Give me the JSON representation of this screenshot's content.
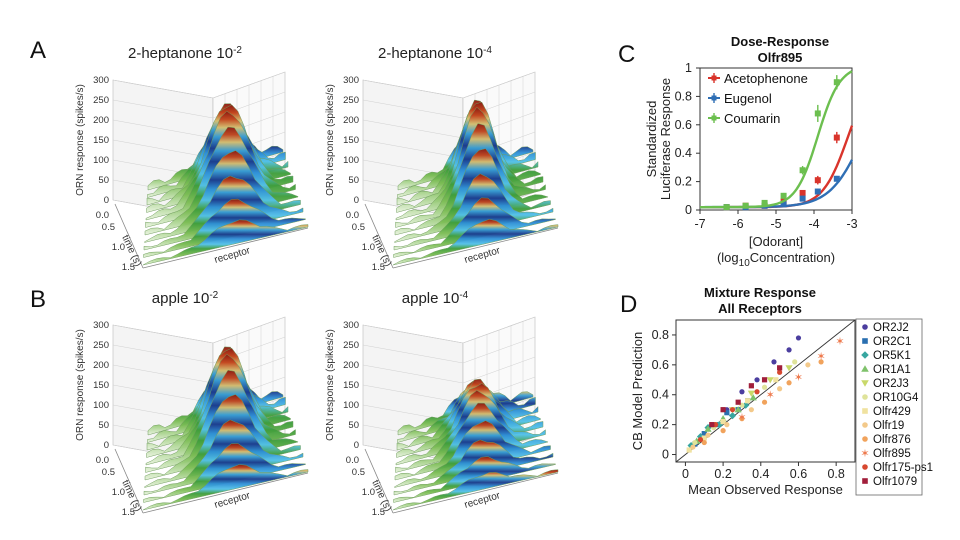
{
  "figure": {
    "panels": [
      {
        "letter": "A",
        "title": "2-heptanone 10",
        "exp": "-2",
        "peak": 0.88,
        "sharp": 0.35
      },
      {
        "letter": "",
        "title": "2-heptanone 10",
        "exp": "-4",
        "peak": 0.92,
        "sharp": 0.6
      },
      {
        "letter": "B",
        "title": "apple 10",
        "exp": "-2",
        "peak": 0.9,
        "sharp": 0.45
      },
      {
        "letter": "",
        "title": "apple 10",
        "exp": "-4",
        "peak": 0.55,
        "sharp": 0.5
      }
    ],
    "axes3d": {
      "zlabel": "ORN response (spikes/s)",
      "zticks": [
        "0.0",
        "0",
        "50",
        "100",
        "150",
        "200",
        "250",
        "300"
      ],
      "timelabel": "time (s)",
      "timeticks": [
        "0.5",
        "1.0",
        "1.5"
      ],
      "receptorlabel": "receptor"
    },
    "colors": {
      "low": "#5aa83e",
      "mid": "#3cb6e6",
      "deep": "#1b3d8f",
      "high": "#b52a1c",
      "surface_light": "#e6f2dc"
    }
  },
  "chart_data": [
    {
      "id": "C",
      "letter": "C",
      "type": "line",
      "title": "Dose-Response",
      "subtitle": "Olfr895",
      "xlabel": "[Odorant]",
      "xlabel2_pre": "(log",
      "xlabel2_sub": "10",
      "xlabel2_post": "Concentration)",
      "ylabel": [
        "Standardized",
        "Luciferase Response"
      ],
      "xlim": [
        -7,
        -3
      ],
      "ylim": [
        0,
        1
      ],
      "xticks": [
        -7,
        -6,
        -5,
        -4,
        -3
      ],
      "yticks": [
        0,
        0.2,
        0.4,
        0.6,
        0.8,
        1
      ],
      "xtick_labels": [
        "-7",
        "-6",
        "-5",
        "-4",
        "-3"
      ],
      "ytick_labels": [
        "0",
        "0.2",
        "0.4",
        "0.6",
        "0.8",
        "1"
      ],
      "series": [
        {
          "name": "Acetophenone",
          "color": "#d9342b",
          "x": [
            -6.3,
            -5.8,
            -5.3,
            -4.8,
            -4.3,
            -3.9,
            -3.4
          ],
          "y": [
            0.02,
            0.03,
            0.03,
            0.06,
            0.12,
            0.21,
            0.51
          ],
          "err": [
            0.01,
            0.01,
            0.01,
            0.02,
            0.02,
            0.03,
            0.04
          ],
          "ec50": -3.1,
          "hill": 1.3
        },
        {
          "name": "Eugenol",
          "color": "#2f6fb5",
          "x": [
            -6.3,
            -5.8,
            -5.3,
            -4.8,
            -4.3,
            -3.9,
            -3.4
          ],
          "y": [
            0.02,
            0.02,
            0.03,
            0.04,
            0.08,
            0.13,
            0.22
          ],
          "err": [
            0.01,
            0.01,
            0.01,
            0.01,
            0.02,
            0.02,
            0.02
          ],
          "ec50": -2.7,
          "hill": 1.0
        },
        {
          "name": "Coumarin",
          "color": "#6cbf4f",
          "x": [
            -6.3,
            -5.8,
            -5.3,
            -4.8,
            -4.3,
            -3.9,
            -3.4
          ],
          "y": [
            0.02,
            0.03,
            0.05,
            0.1,
            0.28,
            0.68,
            0.9
          ],
          "err": [
            0.01,
            0.01,
            0.01,
            0.02,
            0.03,
            0.06,
            0.05
          ],
          "ec50": -3.9,
          "hill": 1.5
        }
      ]
    },
    {
      "id": "D",
      "letter": "D",
      "type": "scatter",
      "title": "Mixture Response",
      "subtitle": "All Receptors",
      "xlabel": "Mean Observed Response",
      "ylabel": "CB Model Prediction",
      "xlim": [
        -0.05,
        0.9
      ],
      "ylim": [
        -0.05,
        0.9
      ],
      "xticks": [
        0,
        0.2,
        0.4,
        0.6,
        0.8
      ],
      "yticks": [
        0,
        0.2,
        0.4,
        0.6,
        0.8
      ],
      "xtick_labels": [
        "0",
        "0.2",
        "0.4",
        "0.6",
        "0.8"
      ],
      "ytick_labels": [
        "0",
        "0.2",
        "0.4",
        "0.6",
        "0.8"
      ],
      "legend_placement": "right",
      "series": [
        {
          "name": "OR2J2",
          "color": "#4b3e9f",
          "marker": "circle",
          "x": [
            0.14,
            0.22,
            0.3,
            0.38,
            0.47,
            0.55,
            0.6
          ],
          "y": [
            0.2,
            0.3,
            0.42,
            0.5,
            0.62,
            0.7,
            0.78
          ]
        },
        {
          "name": "OR2C1",
          "color": "#2a6fb0",
          "marker": "square",
          "x": [
            0.05,
            0.1,
            0.16,
            0.22,
            0.28,
            0.33
          ],
          "y": [
            0.07,
            0.14,
            0.2,
            0.28,
            0.3,
            0.36
          ]
        },
        {
          "name": "OR5K1",
          "color": "#37a6a0",
          "marker": "diamond",
          "x": [
            0.03,
            0.08,
            0.12,
            0.18,
            0.25,
            0.32
          ],
          "y": [
            0.06,
            0.12,
            0.18,
            0.2,
            0.26,
            0.33
          ]
        },
        {
          "name": "OR1A1",
          "color": "#7fc26b",
          "marker": "triangle",
          "x": [
            0.06,
            0.12,
            0.2,
            0.28,
            0.36
          ],
          "y": [
            0.09,
            0.17,
            0.24,
            0.3,
            0.38
          ]
        },
        {
          "name": "OR2J3",
          "color": "#c9d96a",
          "marker": "tri-down",
          "x": [
            0.15,
            0.25,
            0.35,
            0.45,
            0.55
          ],
          "y": [
            0.2,
            0.3,
            0.41,
            0.5,
            0.58
          ]
        },
        {
          "name": "OR10G4",
          "color": "#dfe39a",
          "marker": "circle",
          "x": [
            0.05,
            0.15,
            0.3,
            0.42,
            0.58
          ],
          "y": [
            0.08,
            0.18,
            0.33,
            0.45,
            0.62
          ]
        },
        {
          "name": "Olfr429",
          "color": "#f0e2a0",
          "marker": "square",
          "x": [
            0.02,
            0.1,
            0.2,
            0.33,
            0.48
          ],
          "y": [
            0.03,
            0.11,
            0.22,
            0.36,
            0.5
          ]
        },
        {
          "name": "Olfr19",
          "color": "#f3c98a",
          "marker": "circle",
          "x": [
            0.04,
            0.12,
            0.22,
            0.35,
            0.5,
            0.65
          ],
          "y": [
            0.05,
            0.13,
            0.2,
            0.3,
            0.44,
            0.6
          ]
        },
        {
          "name": "Olfr876",
          "color": "#f1a35c",
          "marker": "circle",
          "x": [
            0.1,
            0.2,
            0.3,
            0.42,
            0.55,
            0.72
          ],
          "y": [
            0.08,
            0.16,
            0.24,
            0.35,
            0.48,
            0.62
          ]
        },
        {
          "name": "Olfr895",
          "color": "#ee7a4e",
          "marker": "star",
          "x": [
            0.3,
            0.45,
            0.6,
            0.72,
            0.82
          ],
          "y": [
            0.25,
            0.4,
            0.52,
            0.66,
            0.76
          ]
        },
        {
          "name": "Olfr175-ps1",
          "color": "#d7482f",
          "marker": "circle",
          "x": [
            0.08,
            0.16,
            0.25,
            0.38,
            0.5
          ],
          "y": [
            0.1,
            0.2,
            0.3,
            0.42,
            0.55
          ]
        },
        {
          "name": "Olfr1079",
          "color": "#a11e3a",
          "marker": "square",
          "x": [
            0.14,
            0.2,
            0.28,
            0.35,
            0.42,
            0.5
          ],
          "y": [
            0.2,
            0.3,
            0.35,
            0.46,
            0.5,
            0.58
          ]
        }
      ],
      "identity_line": true
    }
  ]
}
